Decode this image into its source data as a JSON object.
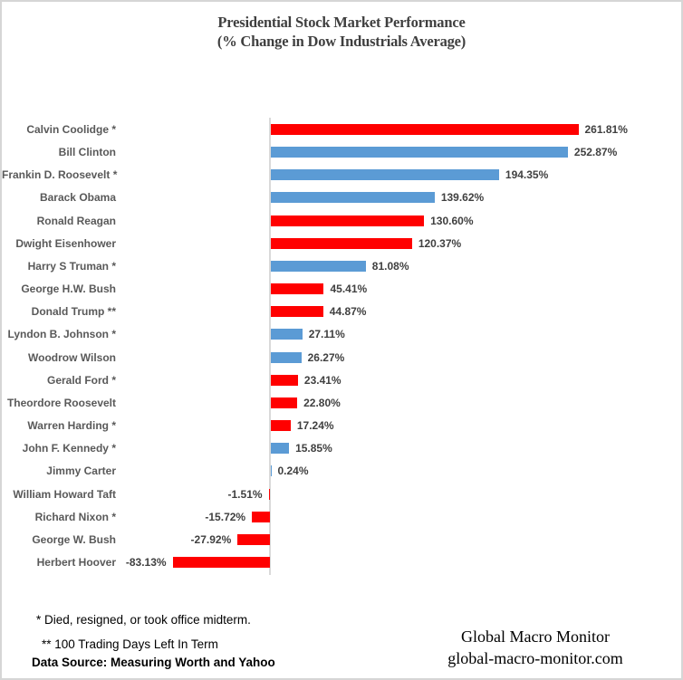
{
  "title": {
    "line1": "Presidential Stock Market Performance",
    "line2": "(% Change in Dow Industrials Average)"
  },
  "chart_data": {
    "type": "bar",
    "orientation": "horizontal",
    "title": "Presidential Stock Market Performance (% Change in Dow Industrials Average)",
    "categories": [
      "Calvin Coolidge *",
      "Bill Clinton",
      "Frankin D. Roosevelt *",
      "Barack Obama",
      "Ronald Reagan",
      "Dwight Eisenhower",
      "Harry S Truman *",
      "George H.W. Bush",
      "Donald Trump **",
      "Lyndon B. Johnson *",
      "Woodrow Wilson",
      "Gerald Ford *",
      "Theordore Roosevelt",
      "Warren Harding *",
      "John F. Kennedy *",
      "Jimmy Carter",
      "William Howard Taft",
      "Richard Nixon *",
      "George W. Bush",
      "Herbert Hoover"
    ],
    "values": [
      261.81,
      252.87,
      194.35,
      139.62,
      130.6,
      120.37,
      81.08,
      45.41,
      44.87,
      27.11,
      26.27,
      23.41,
      22.8,
      17.24,
      15.85,
      0.24,
      -1.51,
      -15.72,
      -27.92,
      -83.13
    ],
    "value_labels": [
      "261.81%",
      "252.87%",
      "194.35%",
      "139.62%",
      "130.60%",
      "120.37%",
      "81.08%",
      "45.41%",
      "44.87%",
      "27.11%",
      "26.27%",
      "23.41%",
      "22.80%",
      "17.24%",
      "15.85%",
      "0.24%",
      "-1.51%",
      "-15.72%",
      "-27.92%",
      "-83.13%"
    ],
    "bar_colors": [
      "red",
      "blue",
      "blue",
      "blue",
      "red",
      "red",
      "blue",
      "red",
      "red",
      "blue",
      "blue",
      "red",
      "red",
      "red",
      "blue",
      "blue",
      "red",
      "red",
      "red",
      "red"
    ],
    "colors": {
      "red": "#FF0000",
      "blue": "#5B9BD5",
      "axis": "#D9D9D9"
    },
    "xlim": [
      -100,
      300
    ],
    "grid": false,
    "legend": false
  },
  "footnotes": {
    "note1": "* Died, resigned, or took office midterm.",
    "note2": "** 100  Trading Days Left In Term",
    "data_source": "Data Source:  Measuring Worth and Yahoo"
  },
  "branding": {
    "name": "Global Macro Monitor",
    "url": "global-macro-monitor.com"
  }
}
